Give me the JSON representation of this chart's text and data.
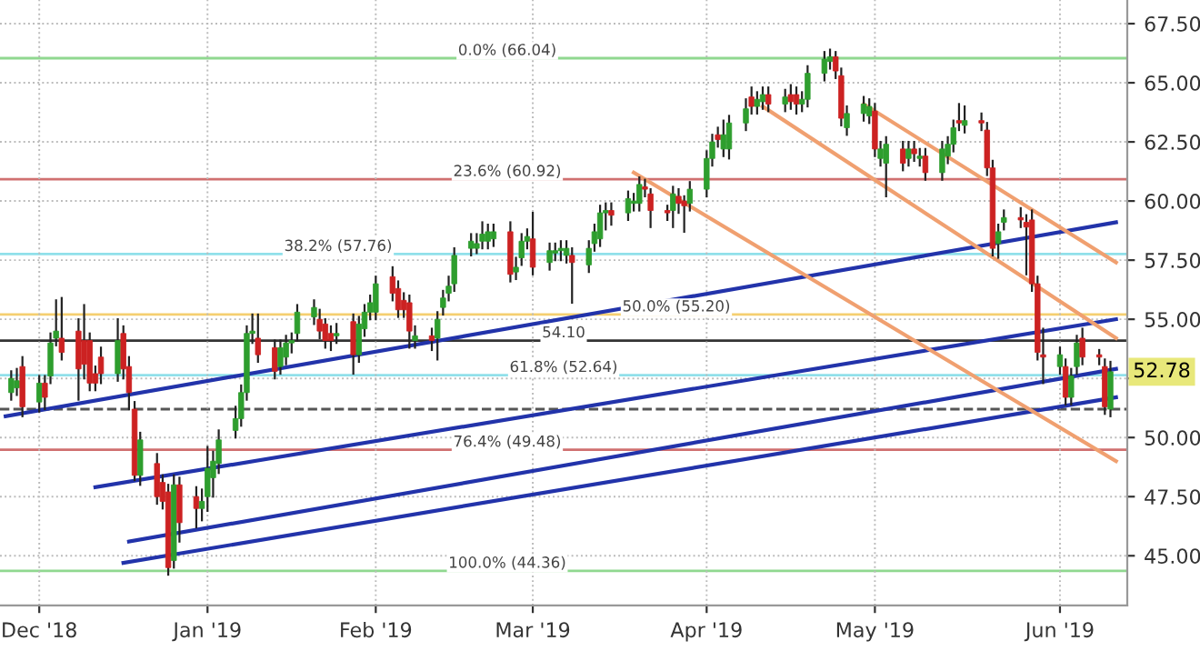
{
  "chart_data": {
    "type": "candlestick",
    "x": [
      "2018-11-28",
      "2018-11-29",
      "2018-11-30",
      "2018-12-03",
      "2018-12-04",
      "2018-12-05",
      "2018-12-06",
      "2018-12-07",
      "2018-12-10",
      "2018-12-11",
      "2018-12-12",
      "2018-12-13",
      "2018-12-14",
      "2018-12-17",
      "2018-12-18",
      "2018-12-19",
      "2018-12-20",
      "2018-12-21",
      "2018-12-24",
      "2018-12-25",
      "2018-12-26",
      "2018-12-27",
      "2018-12-28",
      "2018-12-31",
      "2019-01-01",
      "2019-01-02",
      "2019-01-03",
      "2019-01-04",
      "2019-01-07",
      "2019-01-08",
      "2019-01-09",
      "2019-01-10",
      "2019-01-11",
      "2019-01-14",
      "2019-01-15",
      "2019-01-16",
      "2019-01-17",
      "2019-01-18",
      "2019-01-21",
      "2019-01-22",
      "2019-01-23",
      "2019-01-24",
      "2019-01-25",
      "2019-01-28",
      "2019-01-29",
      "2019-01-30",
      "2019-01-31",
      "2019-02-01",
      "2019-02-04",
      "2019-02-05",
      "2019-02-06",
      "2019-02-07",
      "2019-02-08",
      "2019-02-11",
      "2019-02-12",
      "2019-02-13",
      "2019-02-14",
      "2019-02-15",
      "2019-02-18",
      "2019-02-19",
      "2019-02-20",
      "2019-02-21",
      "2019-02-22",
      "2019-02-25",
      "2019-02-26",
      "2019-02-27",
      "2019-02-28",
      "2019-03-01",
      "2019-03-04",
      "2019-03-05",
      "2019-03-06",
      "2019-03-07",
      "2019-03-08",
      "2019-03-11",
      "2019-03-12",
      "2019-03-13",
      "2019-03-14",
      "2019-03-15",
      "2019-03-18",
      "2019-03-19",
      "2019-03-20",
      "2019-03-21",
      "2019-03-22",
      "2019-03-25",
      "2019-03-26",
      "2019-03-27",
      "2019-03-28",
      "2019-03-29",
      "2019-04-01",
      "2019-04-02",
      "2019-04-03",
      "2019-04-04",
      "2019-04-05",
      "2019-04-08",
      "2019-04-09",
      "2019-04-10",
      "2019-04-11",
      "2019-04-12",
      "2019-04-15",
      "2019-04-16",
      "2019-04-17",
      "2019-04-18",
      "2019-04-19",
      "2019-04-22",
      "2019-04-23",
      "2019-04-24",
      "2019-04-25",
      "2019-04-26",
      "2019-04-29",
      "2019-04-30",
      "2019-05-01",
      "2019-05-02",
      "2019-05-03",
      "2019-05-06",
      "2019-05-07",
      "2019-05-08",
      "2019-05-09",
      "2019-05-10",
      "2019-05-13",
      "2019-05-14",
      "2019-05-15",
      "2019-05-16",
      "2019-05-17",
      "2019-05-20",
      "2019-05-21",
      "2019-05-22",
      "2019-05-23",
      "2019-05-24",
      "2019-05-27",
      "2019-05-28",
      "2019-05-29",
      "2019-05-30",
      "2019-05-31",
      "2019-06-03",
      "2019-06-04",
      "2019-06-05",
      "2019-06-06",
      "2019-06-07",
      "2019-06-10",
      "2019-06-11",
      "2019-06-12"
    ],
    "ohlc": [
      [
        51.9,
        52.8,
        51.6,
        52.5
      ],
      [
        52.1,
        52.9,
        51.8,
        52.4
      ],
      [
        53.0,
        53.4,
        50.9,
        51.3
      ],
      [
        51.5,
        52.6,
        51.1,
        52.3
      ],
      [
        52.3,
        52.6,
        51.2,
        51.7
      ],
      [
        52.6,
        54.4,
        52.3,
        54.0
      ],
      [
        54.2,
        55.8,
        53.9,
        54.5
      ],
      [
        54.2,
        55.9,
        53.3,
        53.6
      ],
      [
        54.5,
        55.0,
        51.6,
        52.9
      ],
      [
        54.1,
        55.6,
        52.5,
        53.1
      ],
      [
        54.1,
        54.4,
        52.0,
        52.3
      ],
      [
        52.7,
        53.0,
        52.0,
        52.3
      ],
      [
        53.4,
        53.8,
        52.3,
        52.7
      ],
      [
        52.7,
        55.0,
        52.4,
        54.1
      ],
      [
        54.4,
        54.7,
        52.5,
        52.9
      ],
      [
        53.0,
        53.4,
        51.2,
        51.9
      ],
      [
        51.2,
        51.5,
        48.2,
        48.4
      ],
      [
        48.4,
        50.2,
        48.0,
        49.9
      ],
      [
        48.9,
        49.3,
        47.2,
        47.5
      ],
      [
        48.1,
        48.4,
        47.0,
        47.3
      ],
      [
        47.7,
        48.0,
        44.2,
        44.5
      ],
      [
        44.8,
        48.4,
        44.5,
        48.0
      ],
      [
        48.0,
        48.3,
        45.6,
        46.4
      ],
      [
        47.5,
        47.9,
        46.2,
        47.0
      ],
      [
        47.0,
        47.8,
        46.5,
        47.3
      ],
      [
        47.5,
        49.6,
        46.9,
        48.7
      ],
      [
        48.3,
        49.4,
        47.5,
        49.0
      ],
      [
        48.9,
        50.3,
        48.5,
        49.9
      ],
      [
        50.3,
        51.3,
        50.0,
        50.8
      ],
      [
        50.8,
        52.2,
        50.5,
        51.9
      ],
      [
        51.9,
        54.7,
        51.6,
        54.4
      ],
      [
        54.4,
        55.2,
        54.0,
        54.5
      ],
      [
        54.2,
        55.2,
        53.2,
        53.5
      ],
      [
        53.8,
        54.1,
        52.5,
        52.8
      ],
      [
        53.0,
        54.1,
        52.7,
        53.8
      ],
      [
        53.4,
        54.3,
        53.1,
        54.0
      ],
      [
        54.0,
        54.4,
        53.6,
        54.1
      ],
      [
        54.4,
        55.6,
        54.1,
        55.3
      ],
      [
        55.1,
        55.8,
        54.8,
        55.5
      ],
      [
        55.0,
        55.4,
        54.2,
        54.5
      ],
      [
        54.8,
        55.0,
        53.8,
        54.1
      ],
      [
        54.4,
        54.7,
        53.7,
        54.1
      ],
      [
        54.3,
        54.8,
        54.0,
        54.4
      ],
      [
        54.9,
        55.2,
        52.7,
        53.5
      ],
      [
        53.5,
        55.1,
        53.2,
        54.8
      ],
      [
        54.6,
        55.6,
        54.3,
        55.3
      ],
      [
        55.3,
        56.0,
        55.0,
        55.7
      ],
      [
        55.3,
        56.8,
        55.0,
        56.5
      ],
      [
        56.8,
        57.2,
        55.8,
        56.1
      ],
      [
        56.3,
        56.6,
        55.1,
        55.4
      ],
      [
        55.8,
        56.1,
        55.1,
        55.4
      ],
      [
        55.7,
        56.0,
        53.8,
        54.5
      ],
      [
        54.1,
        54.7,
        53.8,
        54.3
      ],
      [
        54.3,
        54.6,
        53.7,
        54.1
      ],
      [
        54.2,
        55.3,
        53.3,
        55.0
      ],
      [
        55.5,
        56.2,
        55.2,
        55.9
      ],
      [
        56.1,
        56.8,
        55.8,
        56.4
      ],
      [
        56.5,
        58.0,
        56.2,
        57.7
      ],
      [
        58.0,
        58.6,
        57.7,
        58.3
      ],
      [
        58.0,
        58.6,
        57.8,
        58.2
      ],
      [
        58.3,
        59.1,
        58.0,
        58.6
      ],
      [
        58.3,
        59.0,
        58.0,
        58.7
      ],
      [
        58.4,
        59.0,
        58.1,
        58.7
      ],
      [
        58.7,
        59.1,
        56.6,
        56.9
      ],
      [
        57.0,
        57.6,
        56.7,
        57.2
      ],
      [
        57.6,
        58.6,
        57.3,
        58.3
      ],
      [
        58.3,
        58.8,
        58.0,
        58.5
      ],
      [
        58.4,
        59.5,
        56.9,
        57.2
      ],
      [
        57.4,
        58.2,
        57.1,
        57.9
      ],
      [
        57.8,
        58.2,
        57.5,
        57.9
      ],
      [
        57.9,
        58.3,
        57.5,
        58.0
      ],
      [
        57.7,
        58.3,
        57.4,
        58.0
      ],
      [
        57.7,
        58.0,
        55.7,
        57.4
      ],
      [
        57.3,
        58.3,
        57.0,
        58.0
      ],
      [
        58.2,
        59.0,
        57.9,
        58.7
      ],
      [
        58.4,
        59.8,
        58.1,
        59.5
      ],
      [
        59.5,
        59.9,
        58.8,
        59.6
      ],
      [
        59.6,
        59.9,
        59.0,
        59.4
      ],
      [
        59.5,
        60.4,
        59.2,
        60.1
      ],
      [
        59.9,
        60.3,
        59.6,
        60.0
      ],
      [
        59.9,
        61.0,
        59.6,
        60.7
      ],
      [
        60.6,
        60.9,
        60.2,
        60.5
      ],
      [
        60.3,
        60.5,
        58.9,
        59.6
      ],
      [
        59.6,
        59.8,
        59.2,
        59.5
      ],
      [
        59.6,
        60.6,
        58.9,
        60.3
      ],
      [
        60.2,
        60.5,
        59.5,
        59.9
      ],
      [
        60.0,
        60.2,
        58.7,
        59.8
      ],
      [
        59.9,
        60.8,
        59.6,
        60.5
      ],
      [
        60.5,
        62.1,
        60.2,
        61.8
      ],
      [
        61.8,
        62.8,
        61.5,
        62.5
      ],
      [
        62.8,
        63.1,
        62.3,
        62.6
      ],
      [
        62.2,
        63.4,
        61.9,
        62.8
      ],
      [
        62.2,
        63.6,
        61.8,
        63.3
      ],
      [
        63.3,
        64.3,
        63.0,
        63.9
      ],
      [
        64.4,
        64.8,
        63.7,
        64.0
      ],
      [
        64.0,
        64.6,
        63.7,
        64.3
      ],
      [
        64.2,
        64.8,
        63.9,
        64.5
      ],
      [
        64.5,
        64.8,
        63.8,
        64.1
      ],
      [
        64.1,
        64.7,
        63.8,
        64.4
      ],
      [
        64.5,
        64.9,
        63.9,
        64.2
      ],
      [
        64.5,
        64.8,
        63.7,
        64.1
      ],
      [
        64.1,
        64.6,
        63.8,
        64.3
      ],
      [
        64.3,
        65.7,
        64.0,
        65.4
      ],
      [
        65.4,
        66.3,
        65.1,
        66.0
      ],
      [
        65.9,
        66.4,
        65.6,
        66.1
      ],
      [
        66.1,
        66.3,
        65.2,
        65.5
      ],
      [
        65.3,
        65.6,
        63.2,
        63.5
      ],
      [
        63.1,
        64.0,
        62.8,
        63.7
      ],
      [
        63.7,
        64.4,
        63.4,
        64.1
      ],
      [
        63.6,
        64.3,
        63.3,
        64.0
      ],
      [
        63.8,
        64.1,
        61.9,
        62.2
      ],
      [
        61.8,
        62.5,
        61.5,
        62.2
      ],
      [
        61.6,
        62.7,
        60.2,
        62.4
      ],
      [
        62.2,
        62.5,
        61.3,
        61.6
      ],
      [
        61.8,
        62.5,
        61.5,
        62.2
      ],
      [
        62.2,
        62.5,
        61.7,
        62.0
      ],
      [
        61.8,
        62.2,
        61.5,
        61.9
      ],
      [
        61.9,
        62.2,
        60.9,
        61.2
      ],
      [
        61.2,
        62.5,
        60.9,
        62.2
      ],
      [
        61.9,
        62.7,
        61.6,
        62.4
      ],
      [
        62.4,
        63.4,
        62.1,
        63.1
      ],
      [
        63.4,
        64.1,
        63.0,
        63.3
      ],
      [
        63.2,
        64.0,
        62.9,
        63.4
      ],
      [
        63.4,
        63.7,
        63.0,
        63.3
      ],
      [
        63.0,
        63.3,
        61.1,
        61.4
      ],
      [
        61.4,
        61.7,
        57.7,
        58.0
      ],
      [
        58.2,
        59.0,
        57.6,
        58.7
      ],
      [
        59.1,
        59.6,
        58.8,
        59.3
      ],
      [
        59.3,
        59.7,
        58.9,
        59.2
      ],
      [
        59.1,
        59.4,
        56.9,
        58.9
      ],
      [
        59.2,
        59.6,
        56.2,
        56.5
      ],
      [
        56.5,
        56.8,
        53.3,
        53.6
      ],
      [
        53.5,
        54.6,
        52.3,
        53.4
      ],
      [
        53.0,
        53.8,
        52.7,
        53.5
      ],
      [
        53.0,
        53.3,
        51.4,
        51.7
      ],
      [
        51.7,
        52.9,
        51.4,
        52.6
      ],
      [
        53.0,
        54.3,
        52.7,
        54.0
      ],
      [
        54.2,
        54.6,
        53.1,
        53.4
      ],
      [
        53.5,
        53.7,
        53.1,
        53.4
      ],
      [
        53.0,
        53.3,
        51.0,
        51.3
      ],
      [
        51.2,
        53.2,
        50.9,
        52.78
      ]
    ],
    "colors": [
      "#2e9e2e",
      "#2e9e2e",
      "#cc2222",
      "#2e9e2e",
      "#cc2222",
      "#2e9e2e",
      "#2e9e2e",
      "#cc2222",
      "#cc2222",
      "#cc2222",
      "#cc2222",
      "#cc2222",
      "#cc2222",
      "#2e9e2e",
      "#cc2222",
      "#cc2222",
      "#cc2222",
      "#2e9e2e",
      "#cc2222",
      "#cc2222",
      "#cc2222",
      "#2e9e2e",
      "#cc2222",
      "#cc2222",
      "#2e9e2e",
      "#2e9e2e",
      "#2e9e2e",
      "#2e9e2e",
      "#2e9e2e",
      "#2e9e2e",
      "#2e9e2e",
      "#2e9e2e",
      "#cc2222",
      "#cc2222",
      "#2e9e2e",
      "#2e9e2e",
      "#2e9e2e",
      "#2e9e2e",
      "#2e9e2e",
      "#cc2222",
      "#cc2222",
      "#cc2222",
      "#2e9e2e",
      "#cc2222",
      "#2e9e2e",
      "#2e9e2e",
      "#2e9e2e",
      "#2e9e2e",
      "#cc2222",
      "#cc2222",
      "#cc2222",
      "#cc2222",
      "#2e9e2e",
      "#cc2222",
      "#2e9e2e",
      "#2e9e2e",
      "#2e9e2e",
      "#2e9e2e",
      "#2e9e2e",
      "#2e9e2e",
      "#2e9e2e",
      "#2e9e2e",
      "#2e9e2e",
      "#cc2222",
      "#2e9e2e",
      "#2e9e2e",
      "#2e9e2e",
      "#cc2222",
      "#2e9e2e",
      "#2e9e2e",
      "#2e9e2e",
      "#2e9e2e",
      "#cc2222",
      "#2e9e2e",
      "#2e9e2e",
      "#2e9e2e",
      "#2e9e2e",
      "#cc2222",
      "#2e9e2e",
      "#2e9e2e",
      "#2e9e2e",
      "#cc2222",
      "#cc2222",
      "#cc2222",
      "#2e9e2e",
      "#cc2222",
      "#cc2222",
      "#2e9e2e",
      "#2e9e2e",
      "#2e9e2e",
      "#cc2222",
      "#2e9e2e",
      "#2e9e2e",
      "#2e9e2e",
      "#cc2222",
      "#2e9e2e",
      "#2e9e2e",
      "#cc2222",
      "#2e9e2e",
      "#cc2222",
      "#cc2222",
      "#2e9e2e",
      "#2e9e2e",
      "#2e9e2e",
      "#2e9e2e",
      "#cc2222",
      "#cc2222",
      "#2e9e2e",
      "#2e9e2e",
      "#2e9e2e",
      "#cc2222",
      "#2e9e2e",
      "#2e9e2e",
      "#cc2222",
      "#2e9e2e",
      "#cc2222",
      "#2e9e2e",
      "#cc2222",
      "#2e9e2e",
      "#2e9e2e",
      "#2e9e2e",
      "#cc2222",
      "#2e9e2e",
      "#cc2222",
      "#cc2222",
      "#cc2222",
      "#2e9e2e",
      "#2e9e2e",
      "#cc2222",
      "#cc2222",
      "#cc2222",
      "#cc2222",
      "#cc2222",
      "#2e9e2e",
      "#cc2222",
      "#2e9e2e",
      "#2e9e2e",
      "#cc2222",
      "#cc2222",
      "#cc2222",
      "#2e9e2e"
    ],
    "series": [
      {
        "type": "line",
        "color": "#2233aa",
        "x": [
          "2018-11-27",
          "2019-06-13"
        ],
        "values": [
          50.9,
          59.1
        ]
      },
      {
        "type": "line",
        "color": "#2233aa",
        "x": [
          "2018-12-13",
          "2019-06-13"
        ],
        "values": [
          47.9,
          55.0
        ]
      },
      {
        "type": "line",
        "color": "#2233aa",
        "x": [
          "2018-12-19",
          "2019-06-13"
        ],
        "values": [
          45.6,
          52.9
        ]
      },
      {
        "type": "line",
        "color": "#2233aa",
        "x": [
          "2018-12-18",
          "2019-06-13"
        ],
        "values": [
          44.7,
          51.7
        ]
      },
      {
        "type": "line",
        "color": "#f0a070",
        "x": [
          "2019-04-29",
          "2019-06-13"
        ],
        "values": [
          64.1,
          57.4
        ]
      },
      {
        "type": "line",
        "color": "#f0a070",
        "x": [
          "2019-04-11",
          "2019-06-13"
        ],
        "values": [
          64.0,
          54.2
        ]
      },
      {
        "type": "line",
        "color": "#f0a070",
        "x": [
          "2019-03-19",
          "2019-06-13"
        ],
        "values": [
          61.2,
          49.0
        ]
      }
    ],
    "ref_lines": [
      {
        "axis": "y",
        "value": 66.04,
        "label": "0.0% (66.04)",
        "color": "#90d890",
        "line_style": "solid"
      },
      {
        "axis": "y",
        "value": 60.92,
        "label": "23.6% (60.92)",
        "color": "#d07070",
        "line_style": "solid"
      },
      {
        "axis": "y",
        "value": 57.76,
        "label": "38.2% (57.76)",
        "color": "#90e0ea",
        "line_style": "solid"
      },
      {
        "axis": "y",
        "value": 55.2,
        "label": "50.0% (55.20)",
        "color": "#f5cf70",
        "line_style": "solid"
      },
      {
        "axis": "y",
        "value": 54.1,
        "label": "54.10",
        "color": "#333333",
        "line_style": "solid"
      },
      {
        "axis": "y",
        "value": 52.64,
        "label": "61.8% (52.64)",
        "color": "#90e0ea",
        "line_style": "solid"
      },
      {
        "axis": "y",
        "value": 51.2,
        "color": "#555555",
        "line_style": "dashed"
      },
      {
        "axis": "y",
        "value": 49.48,
        "label": "76.4% (49.48)",
        "color": "#d07070",
        "line_style": "solid"
      },
      {
        "axis": "y",
        "value": 44.36,
        "label": "100.0% (44.36)",
        "color": "#90d890",
        "line_style": "solid"
      }
    ],
    "annotations": [
      {
        "text": "52.78",
        "x": "2019-06-12",
        "y": 52.78
      }
    ],
    "xlim": [
      "2018-11-26",
      "2019-06-15"
    ],
    "xticks": [
      {
        "value": "2018-12-03",
        "label": "Dec '18"
      },
      {
        "value": "2019-01-02",
        "label": "Jan '19"
      },
      {
        "value": "2019-02-01",
        "label": "Feb '19"
      },
      {
        "value": "2019-03-01",
        "label": "Mar '19"
      },
      {
        "value": "2019-04-01",
        "label": "Apr '19"
      },
      {
        "value": "2019-05-01",
        "label": "May '19"
      },
      {
        "value": "2019-06-03",
        "label": "Jun '19"
      }
    ],
    "ylim": [
      42.9,
      68.5
    ],
    "yticks": [
      {
        "value": 45,
        "label": "45.00"
      },
      {
        "value": 47.5,
        "label": "47.50"
      },
      {
        "value": 50,
        "label": "50.00"
      },
      {
        "value": 52.5,
        "label": null
      },
      {
        "value": 55,
        "label": "55.00"
      },
      {
        "value": 57.5,
        "label": "57.50"
      },
      {
        "value": 60,
        "label": "60.00"
      },
      {
        "value": 62.5,
        "label": "62.50"
      },
      {
        "value": 65,
        "label": "65.00"
      },
      {
        "value": 67.5,
        "label": "67.50"
      }
    ],
    "grid": true
  }
}
